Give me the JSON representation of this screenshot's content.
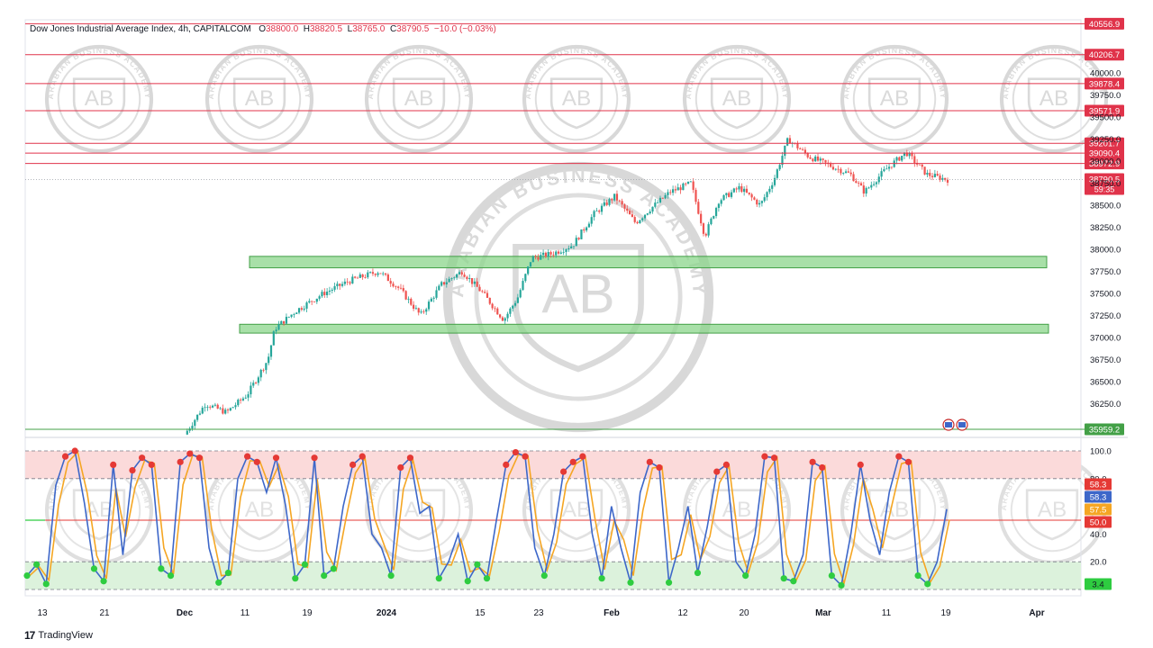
{
  "header": {
    "symbol": "Dow Jones Industrial Average Index, 4h, CAPITALCOM",
    "o_label": "O",
    "o_value": "38800.0",
    "h_label": "H",
    "h_value": "38820.5",
    "l_label": "L",
    "l_value": "38765.0",
    "c_label": "C",
    "c_value": "38790.5",
    "change": "−10.0 (−0.03%)"
  },
  "brand": {
    "name": "TradingView",
    "logo": "17"
  },
  "watermark": {
    "text": "ARABIAN BUSINESS ACADEMY",
    "monogram": "AB"
  },
  "colors": {
    "up": "#26a69a",
    "down": "#ef5350",
    "level_line": "#e0334a",
    "zone_fill": "#8bd68b",
    "zone_stroke": "#43a047",
    "overbought": "#fbdada",
    "oversold": "#dcf2dc",
    "k_line": "#3d67c9",
    "d_line": "#f5a623",
    "mid_line": "#e53935"
  },
  "chart_data": [
    {
      "type": "candlestick",
      "title": "Dow Jones Industrial Average Index, 4h, CAPITALCOM",
      "ylim": [
        35700,
        40700
      ],
      "y_ticks": [
        "40000.0",
        "39750.0",
        "39500.0",
        "39250.0",
        "39000.0",
        "38750.0",
        "38500.0",
        "38250.0",
        "38000.0",
        "37750.0",
        "37500.0",
        "37250.0",
        "37000.0",
        "36750.0",
        "36500.0",
        "36250.0"
      ],
      "x_ticks": [
        "13",
        "21",
        "Dec",
        "11",
        "19",
        "2024",
        "15",
        "23",
        "Feb",
        "12",
        "20",
        "Mar",
        "11",
        "19",
        "Apr"
      ],
      "x_tick_bold": [
        "Dec",
        "2024",
        "Feb",
        "Mar",
        "Apr"
      ],
      "price_path": [
        [
          0,
          35900
        ],
        [
          3,
          36250
        ],
        [
          6,
          36150
        ],
        [
          9,
          36350
        ],
        [
          12,
          36750
        ],
        [
          13,
          37100
        ],
        [
          16,
          37300
        ],
        [
          20,
          37500
        ],
        [
          24,
          37650
        ],
        [
          28,
          37750
        ],
        [
          31,
          37550
        ],
        [
          34,
          37250
        ],
        [
          37,
          37600
        ],
        [
          40,
          37750
        ],
        [
          43,
          37500
        ],
        [
          46,
          37200
        ],
        [
          48,
          37450
        ],
        [
          50,
          37900
        ],
        [
          53,
          37950
        ],
        [
          56,
          38050
        ],
        [
          59,
          38400
        ],
        [
          62,
          38600
        ],
        [
          65,
          38300
        ],
        [
          67,
          38450
        ],
        [
          70,
          38650
        ],
        [
          73,
          38750
        ],
        [
          75,
          38150
        ],
        [
          77,
          38550
        ],
        [
          80,
          38700
        ],
        [
          83,
          38500
        ],
        [
          85,
          38800
        ],
        [
          87,
          39250
        ],
        [
          90,
          39050
        ],
        [
          93,
          38950
        ],
        [
          96,
          38850
        ],
        [
          98,
          38650
        ],
        [
          101,
          38900
        ],
        [
          104,
          39100
        ],
        [
          107,
          38850
        ],
        [
          110,
          38790
        ]
      ],
      "levels": [
        {
          "value": 40556.9,
          "label": "40556.9"
        },
        {
          "value": 40206.7,
          "label": "40206.7"
        },
        {
          "value": 39878.4,
          "label": "39878.4"
        },
        {
          "value": 39571.9,
          "label": "39571.9"
        },
        {
          "value": 39201.7,
          "label": "39201.7"
        },
        {
          "value": 39090.4,
          "label": "39090.4"
        },
        {
          "value": 38972.9,
          "label": "38972.9"
        }
      ],
      "support_level": {
        "value": 35959.2,
        "label": "35959.2"
      },
      "current_price": {
        "value": 38790.5,
        "label": "38790.5",
        "timer": "59:35"
      },
      "zones": [
        {
          "from": 37790,
          "to": 37920,
          "x_start_label": "11"
        },
        {
          "from": 37050,
          "to": 37150,
          "x_start_label": "Dec"
        }
      ]
    },
    {
      "type": "line",
      "ylim": [
        0,
        100
      ],
      "y_ticks": [
        "100.0",
        "80.0",
        "40.0",
        "20.0"
      ],
      "bands": {
        "overbought": [
          80,
          100
        ],
        "oversold": [
          0,
          20
        ]
      },
      "mid_level": 50,
      "badges": [
        {
          "label": "58.3",
          "value": 58.3,
          "color": "#e53935"
        },
        {
          "label": "58.3",
          "value": 58.3,
          "color": "#3d67c9"
        },
        {
          "label": "57.5",
          "value": 57.5,
          "color": "#f5a623"
        },
        {
          "label": "50.0",
          "value": 50.0,
          "color": "#e53935"
        },
        {
          "label": "3.4",
          "value": 3.4,
          "color": "#2ecc40"
        }
      ],
      "oscillator_pivots": [
        [
          0,
          10
        ],
        [
          1,
          18
        ],
        [
          2,
          4
        ],
        [
          3,
          75
        ],
        [
          4,
          96
        ],
        [
          5,
          100
        ],
        [
          6,
          62
        ],
        [
          7,
          15
        ],
        [
          8,
          6
        ],
        [
          9,
          90
        ],
        [
          10,
          25
        ],
        [
          11,
          86
        ],
        [
          12,
          95
        ],
        [
          13,
          90
        ],
        [
          14,
          15
        ],
        [
          15,
          10
        ],
        [
          16,
          92
        ],
        [
          17,
          98
        ],
        [
          18,
          95
        ],
        [
          19,
          30
        ],
        [
          20,
          5
        ],
        [
          21,
          12
        ],
        [
          22,
          80
        ],
        [
          23,
          96
        ],
        [
          24,
          92
        ],
        [
          25,
          70
        ],
        [
          26,
          95
        ],
        [
          27,
          60
        ],
        [
          28,
          8
        ],
        [
          29,
          18
        ],
        [
          30,
          95
        ],
        [
          31,
          10
        ],
        [
          32,
          15
        ],
        [
          33,
          60
        ],
        [
          34,
          90
        ],
        [
          35,
          96
        ],
        [
          36,
          40
        ],
        [
          37,
          30
        ],
        [
          38,
          10
        ],
        [
          39,
          88
        ],
        [
          40,
          95
        ],
        [
          41,
          55
        ],
        [
          42,
          60
        ],
        [
          43,
          8
        ],
        [
          44,
          20
        ],
        [
          45,
          40
        ],
        [
          46,
          6
        ],
        [
          47,
          18
        ],
        [
          48,
          8
        ],
        [
          49,
          50
        ],
        [
          50,
          90
        ],
        [
          51,
          99
        ],
        [
          52,
          96
        ],
        [
          53,
          30
        ],
        [
          54,
          10
        ],
        [
          55,
          40
        ],
        [
          56,
          85
        ],
        [
          57,
          92
        ],
        [
          58,
          96
        ],
        [
          59,
          40
        ],
        [
          60,
          8
        ],
        [
          61,
          60
        ],
        [
          62,
          30
        ],
        [
          63,
          5
        ],
        [
          64,
          70
        ],
        [
          65,
          92
        ],
        [
          66,
          88
        ],
        [
          67,
          5
        ],
        [
          68,
          30
        ],
        [
          69,
          60
        ],
        [
          70,
          12
        ],
        [
          71,
          45
        ],
        [
          72,
          85
        ],
        [
          73,
          90
        ],
        [
          74,
          20
        ],
        [
          75,
          10
        ],
        [
          76,
          40
        ],
        [
          77,
          96
        ],
        [
          78,
          95
        ],
        [
          79,
          8
        ],
        [
          80,
          6
        ],
        [
          81,
          25
        ],
        [
          82,
          92
        ],
        [
          83,
          88
        ],
        [
          84,
          10
        ],
        [
          85,
          3
        ],
        [
          86,
          40
        ],
        [
          87,
          90
        ],
        [
          88,
          50
        ],
        [
          89,
          25
        ],
        [
          90,
          70
        ],
        [
          91,
          96
        ],
        [
          92,
          92
        ],
        [
          93,
          10
        ],
        [
          94,
          4
        ],
        [
          95,
          20
        ],
        [
          96,
          58
        ]
      ]
    }
  ]
}
